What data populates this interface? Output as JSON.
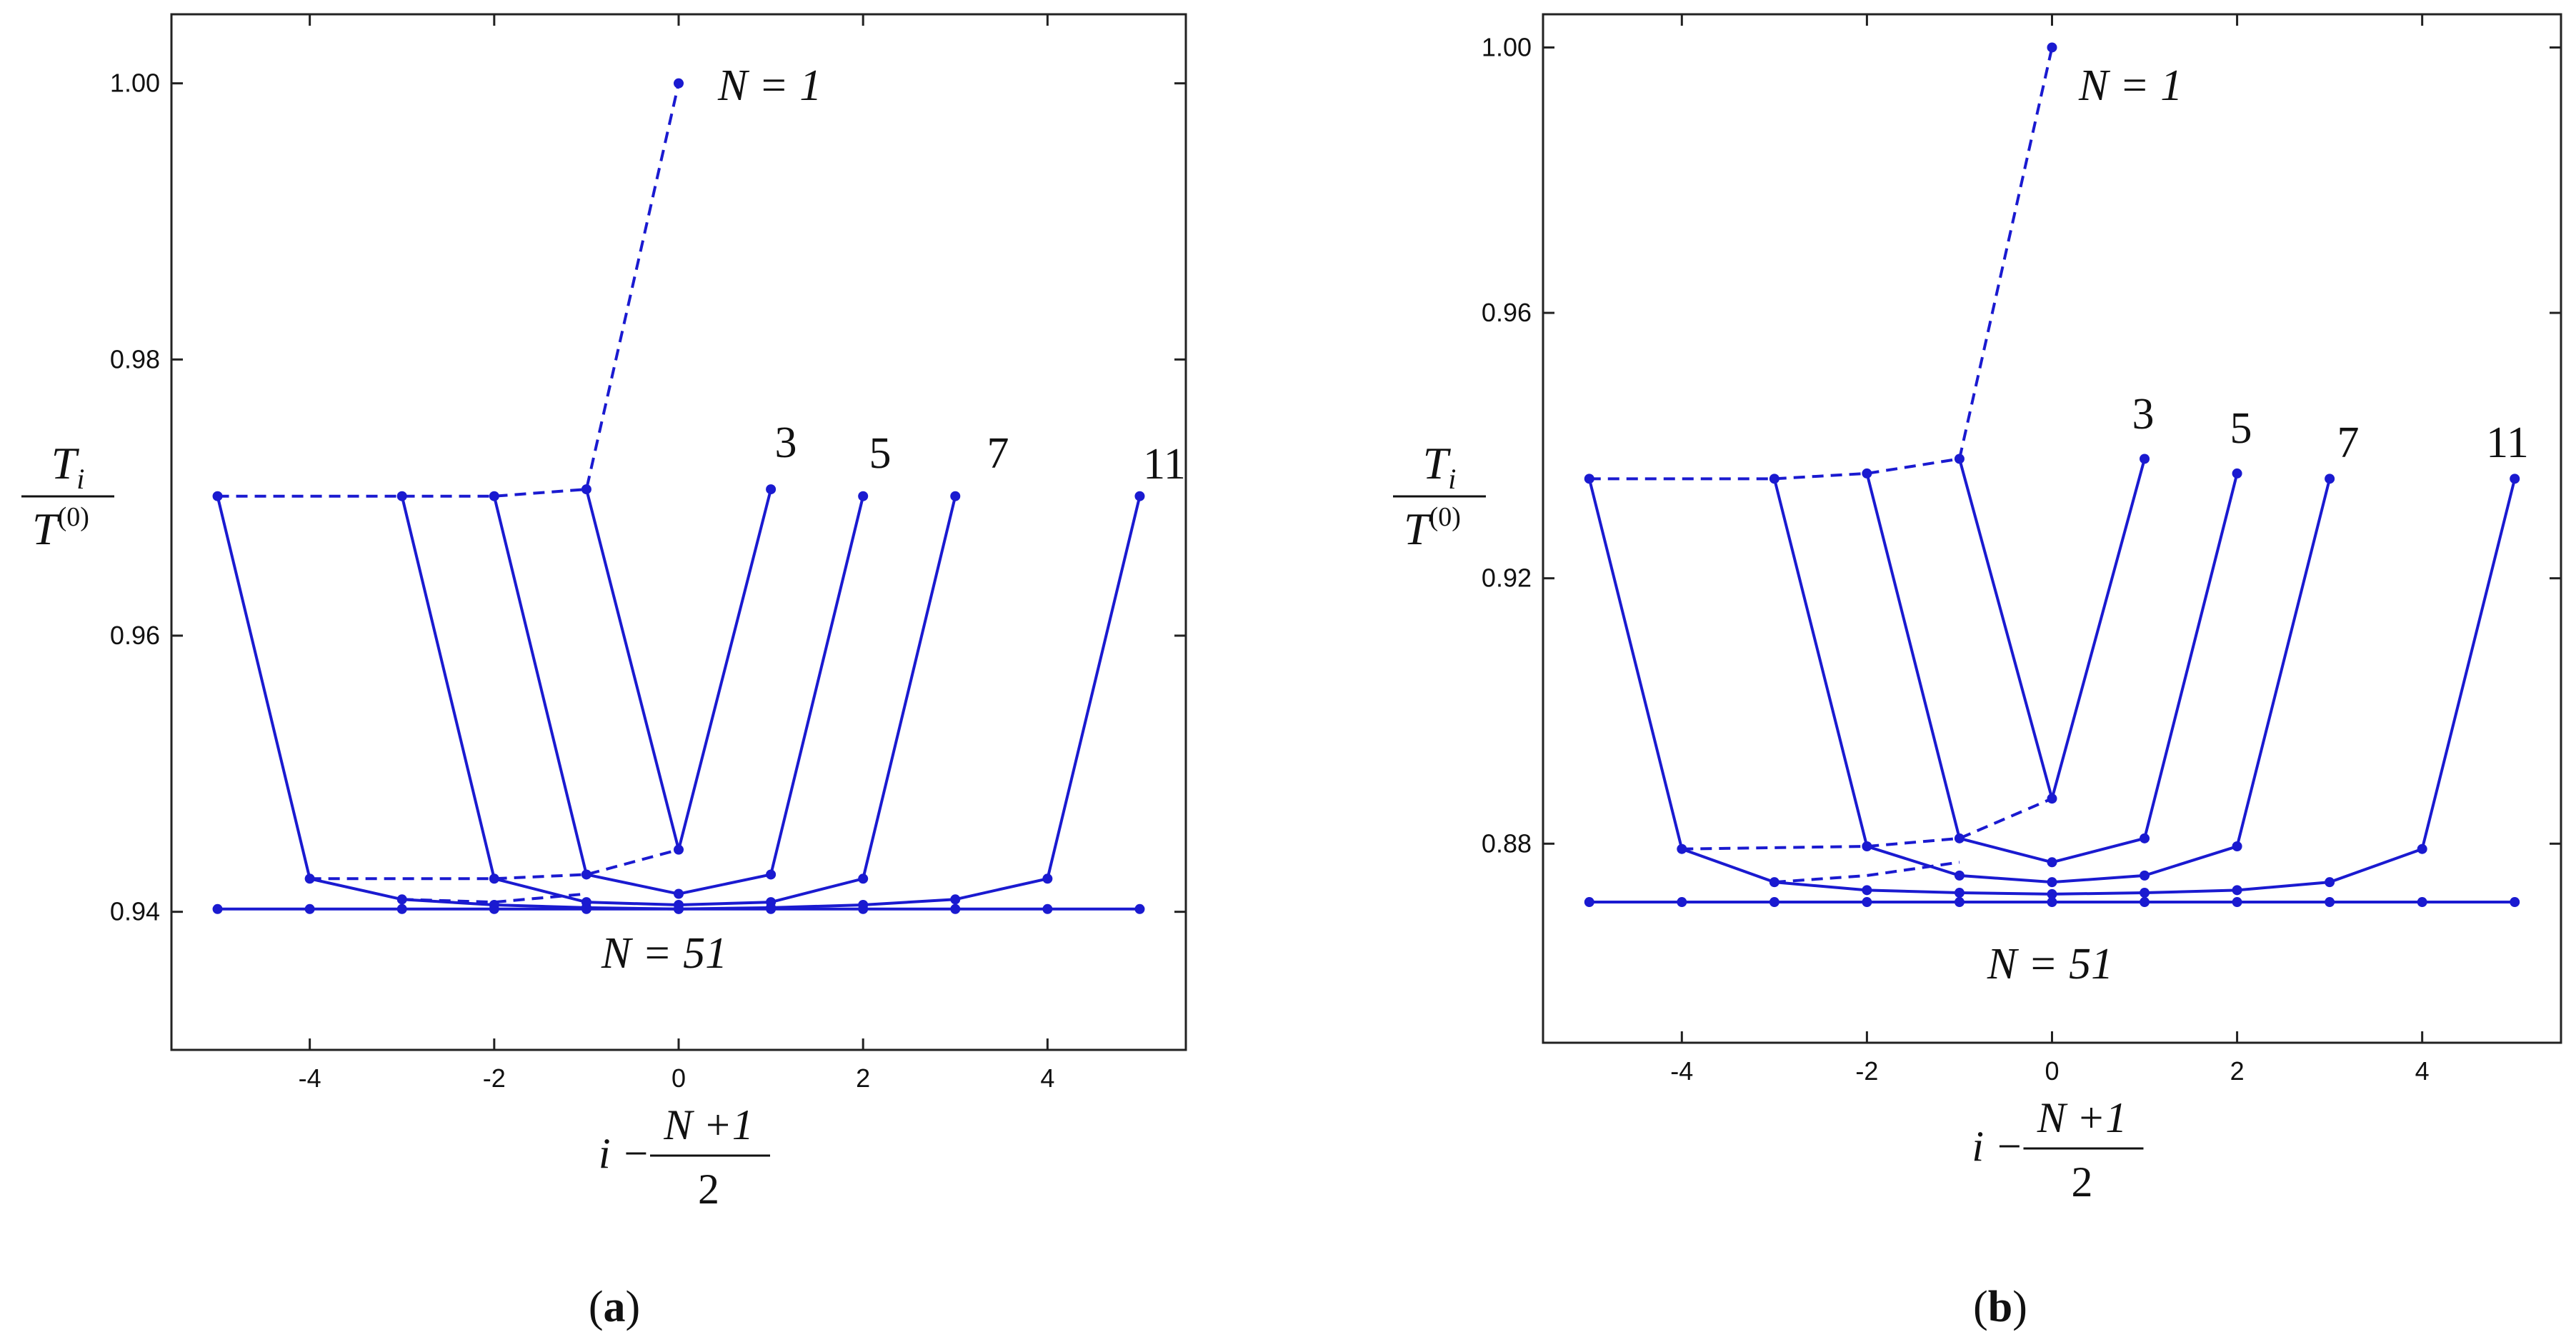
{
  "colors": {
    "series": "#1a1ad0",
    "axis": "#222222"
  },
  "chart_data": [
    {
      "type": "line",
      "panel_label": {
        "open": "(",
        "letter": "a",
        "close": ")"
      },
      "ylim": [
        0.93,
        1.005
      ],
      "xlim": [
        -5.5,
        5.5
      ],
      "yticks": [
        0.94,
        0.96,
        0.98,
        1.0
      ],
      "ytick_labels": [
        "0.94",
        "0.96",
        "0.98",
        "1.00"
      ],
      "xticks": [
        -4,
        -2,
        0,
        2,
        4
      ],
      "xtick_labels": [
        "-4",
        "-2",
        "0",
        "2",
        "4"
      ],
      "ylabel": {
        "num_main": "T",
        "num_sub": "i",
        "den_main": "T",
        "den_sup": "(0)"
      },
      "xlabel": {
        "lead": "i − ",
        "num": "N +1",
        "den": "2"
      },
      "annotations": {
        "n1": "N = 1",
        "n51": "N = 51",
        "n3": "3",
        "n5": "5",
        "n7": "7",
        "n11": "11"
      },
      "series": [
        {
          "points": [
            [
              -5,
              0.9701
            ],
            [
              -4,
              0.9424
            ],
            [
              -3,
              0.9409
            ],
            [
              -2,
              0.9405
            ],
            [
              -1,
              0.9403
            ],
            [
              0,
              0.9402
            ],
            [
              1,
              0.9403
            ],
            [
              2,
              0.9405
            ],
            [
              3,
              0.9409
            ],
            [
              4,
              0.9424
            ],
            [
              5,
              0.9701
            ]
          ]
        },
        {
          "points": [
            [
              -3,
              0.9701
            ],
            [
              -2,
              0.9424
            ],
            [
              -1,
              0.9407
            ],
            [
              0,
              0.9405
            ],
            [
              1,
              0.9407
            ],
            [
              2,
              0.9424
            ],
            [
              3,
              0.9701
            ]
          ]
        },
        {
          "points": [
            [
              -2,
              0.9701
            ],
            [
              -1,
              0.9427
            ],
            [
              0,
              0.9413
            ],
            [
              1,
              0.9427
            ],
            [
              2,
              0.9701
            ]
          ]
        },
        {
          "points": [
            [
              -1,
              0.9706
            ],
            [
              0,
              0.9445
            ],
            [
              1,
              0.9706
            ]
          ]
        },
        {
          "points": [
            [
              -5,
              0.9402
            ],
            [
              -4,
              0.9402
            ],
            [
              -3,
              0.9402
            ],
            [
              -2,
              0.9402
            ],
            [
              -1,
              0.9402
            ],
            [
              0,
              0.9402
            ],
            [
              1,
              0.9402
            ],
            [
              2,
              0.9402
            ],
            [
              3,
              0.9402
            ],
            [
              4,
              0.9402
            ],
            [
              5,
              0.9402
            ]
          ]
        }
      ],
      "dashed_series": [
        {
          "points": [
            [
              -5,
              0.9701
            ],
            [
              -3,
              0.9701
            ],
            [
              -2,
              0.9701
            ],
            [
              -1,
              0.9706
            ],
            [
              0,
              1.0
            ]
          ]
        },
        {
          "points": [
            [
              -4,
              0.9424
            ],
            [
              -2,
              0.9424
            ],
            [
              -1,
              0.9427
            ],
            [
              0,
              0.9445
            ]
          ]
        },
        {
          "points": [
            [
              -3,
              0.9409
            ],
            [
              -2,
              0.9407
            ],
            [
              -1,
              0.9413
            ]
          ]
        }
      ]
    },
    {
      "type": "line",
      "panel_label": {
        "open": "(",
        "letter": "b",
        "close": ")"
      },
      "ylim": [
        0.85,
        1.005
      ],
      "xlim": [
        -5.5,
        5.5
      ],
      "yticks": [
        0.88,
        0.92,
        0.96,
        1.0
      ],
      "ytick_labels": [
        "0.88",
        "0.92",
        "0.96",
        "1.00"
      ],
      "xticks": [
        -4,
        -2,
        0,
        2,
        4
      ],
      "xtick_labels": [
        "-4",
        "-2",
        "0",
        "2",
        "4"
      ],
      "ylabel": {
        "num_main": "T",
        "num_sub": "i",
        "den_main": "T",
        "den_sup": "(0)"
      },
      "xlabel": {
        "lead": "i − ",
        "num": "N +1",
        "den": "2"
      },
      "annotations": {
        "n1": "N = 1",
        "n51": "N = 51",
        "n3": "3",
        "n5": "5",
        "n7": "7",
        "n11": "11"
      },
      "series": [
        {
          "points": [
            [
              -5,
              0.935
            ],
            [
              -4,
              0.8792
            ],
            [
              -3,
              0.8742
            ],
            [
              -2,
              0.873
            ],
            [
              -1,
              0.8726
            ],
            [
              0,
              0.8724
            ],
            [
              1,
              0.8726
            ],
            [
              2,
              0.873
            ],
            [
              3,
              0.8742
            ],
            [
              4,
              0.8792
            ],
            [
              5,
              0.935
            ]
          ]
        },
        {
          "points": [
            [
              -3,
              0.935
            ],
            [
              -2,
              0.8796
            ],
            [
              -1,
              0.8752
            ],
            [
              0,
              0.8742
            ],
            [
              1,
              0.8752
            ],
            [
              2,
              0.8796
            ],
            [
              3,
              0.935
            ]
          ]
        },
        {
          "points": [
            [
              -2,
              0.9358
            ],
            [
              -1,
              0.8808
            ],
            [
              0,
              0.8772
            ],
            [
              1,
              0.8808
            ],
            [
              2,
              0.9358
            ]
          ]
        },
        {
          "points": [
            [
              -1,
              0.938
            ],
            [
              0,
              0.8868
            ],
            [
              1,
              0.938
            ]
          ]
        },
        {
          "points": [
            [
              -5,
              0.8712
            ],
            [
              -4,
              0.8712
            ],
            [
              -3,
              0.8712
            ],
            [
              -2,
              0.8712
            ],
            [
              -1,
              0.8712
            ],
            [
              0,
              0.8712
            ],
            [
              1,
              0.8712
            ],
            [
              2,
              0.8712
            ],
            [
              3,
              0.8712
            ],
            [
              4,
              0.8712
            ],
            [
              5,
              0.8712
            ]
          ]
        }
      ],
      "dashed_series": [
        {
          "points": [
            [
              -5,
              0.935
            ],
            [
              -3,
              0.935
            ],
            [
              -2,
              0.9358
            ],
            [
              -1,
              0.938
            ],
            [
              0,
              1.0
            ]
          ]
        },
        {
          "points": [
            [
              -4,
              0.8792
            ],
            [
              -2,
              0.8796
            ],
            [
              -1,
              0.8808
            ],
            [
              0,
              0.8868
            ]
          ]
        },
        {
          "points": [
            [
              -3,
              0.8742
            ],
            [
              -2,
              0.8752
            ],
            [
              -1,
              0.8772
            ]
          ]
        }
      ]
    }
  ]
}
